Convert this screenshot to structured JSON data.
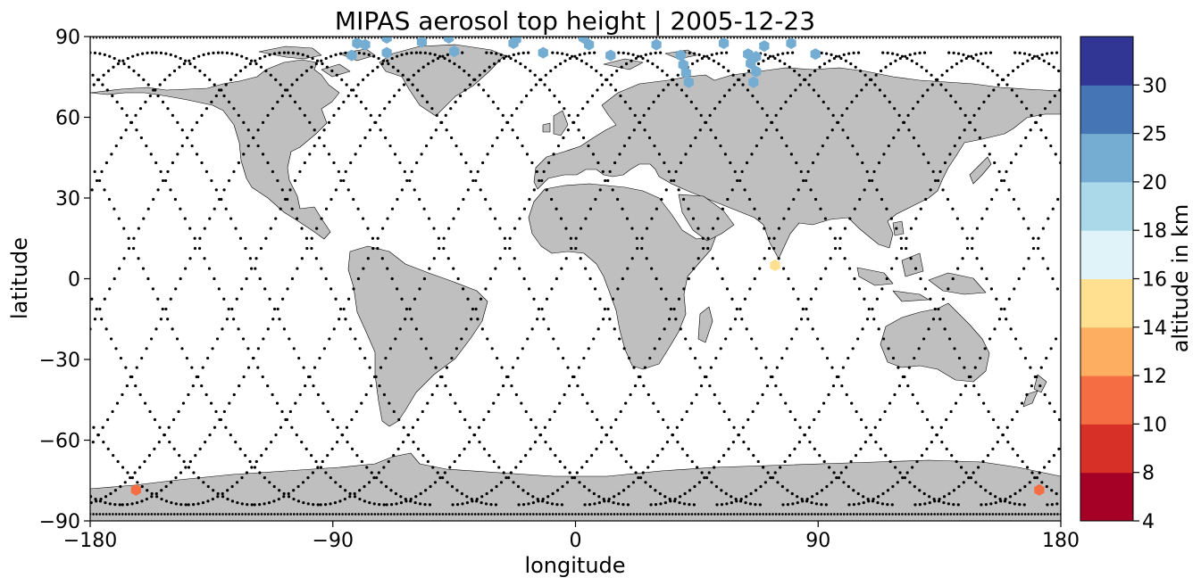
{
  "chart_data": {
    "type": "scatter",
    "title": "MIPAS aerosol top height | 2005-12-23",
    "xlabel": "longitude",
    "ylabel": "latitude",
    "xlim": [
      -180,
      180
    ],
    "ylim": [
      -90,
      90
    ],
    "x_ticks": [
      -180,
      -90,
      0,
      90,
      180
    ],
    "y_ticks": [
      -90,
      -60,
      -30,
      0,
      30,
      60,
      90
    ],
    "x_tick_labels": [
      "−180",
      "−90",
      "0",
      "90",
      "180"
    ],
    "y_tick_labels": [
      "−90",
      "−60",
      "−30",
      "0",
      "30",
      "60",
      "90"
    ],
    "background_map": "world coastlines, land in grey",
    "land_color": "#bfbfbf",
    "track_color": "#000000",
    "grid": false,
    "colorbar": {
      "label": "altitude in km",
      "boundaries": [
        4,
        8,
        10,
        12,
        14,
        16,
        18,
        20,
        25,
        30
      ],
      "tick_labels": [
        "4",
        "8",
        "10",
        "12",
        "14",
        "16",
        "18",
        "20",
        "25",
        "30"
      ],
      "colors": [
        "#a50026",
        "#d73027",
        "#f46d43",
        "#fdae61",
        "#fee090",
        "#e0f3f8",
        "#abd9e9",
        "#74add1",
        "#4575b4",
        "#313695"
      ]
    },
    "aerosol_points": [
      {
        "lon": -83,
        "lat": 83,
        "alt": 22
      },
      {
        "lon": -81,
        "lat": 87.5,
        "alt": 22
      },
      {
        "lon": -78,
        "lat": 87,
        "alt": 22
      },
      {
        "lon": -70,
        "lat": 89.5,
        "alt": 22
      },
      {
        "lon": -70,
        "lat": 84,
        "alt": 22
      },
      {
        "lon": -57,
        "lat": 88,
        "alt": 22
      },
      {
        "lon": -47,
        "lat": 89.5,
        "alt": 22
      },
      {
        "lon": -45,
        "lat": 84.5,
        "alt": 22
      },
      {
        "lon": -23,
        "lat": 87.5,
        "alt": 22
      },
      {
        "lon": -22,
        "lat": 89,
        "alt": 22
      },
      {
        "lon": -12,
        "lat": 84,
        "alt": 22
      },
      {
        "lon": 3,
        "lat": 89.5,
        "alt": 22
      },
      {
        "lon": 5,
        "lat": 87,
        "alt": 22
      },
      {
        "lon": 13,
        "lat": 83,
        "alt": 22
      },
      {
        "lon": 30,
        "lat": 87,
        "alt": 22
      },
      {
        "lon": 39,
        "lat": 83,
        "alt": 22
      },
      {
        "lon": 40,
        "lat": 79.5,
        "alt": 22
      },
      {
        "lon": 41,
        "lat": 76.5,
        "alt": 22
      },
      {
        "lon": 42,
        "lat": 73,
        "alt": 22
      },
      {
        "lon": 55,
        "lat": 87.5,
        "alt": 22
      },
      {
        "lon": 64,
        "lat": 83.5,
        "alt": 22
      },
      {
        "lon": 65,
        "lat": 80,
        "alt": 22
      },
      {
        "lon": 67,
        "lat": 82.5,
        "alt": 22
      },
      {
        "lon": 67,
        "lat": 77,
        "alt": 22
      },
      {
        "lon": 66,
        "lat": 73,
        "alt": 22
      },
      {
        "lon": 70,
        "lat": 86.5,
        "alt": 22
      },
      {
        "lon": 80,
        "lat": 87.5,
        "alt": 22
      },
      {
        "lon": 89,
        "lat": 83.5,
        "alt": 22
      },
      {
        "lon": 74,
        "lat": 5,
        "alt": 15
      },
      {
        "lon": -163,
        "lat": -78.5,
        "alt": 11
      },
      {
        "lon": 172,
        "lat": -78.5,
        "alt": 11
      }
    ]
  }
}
